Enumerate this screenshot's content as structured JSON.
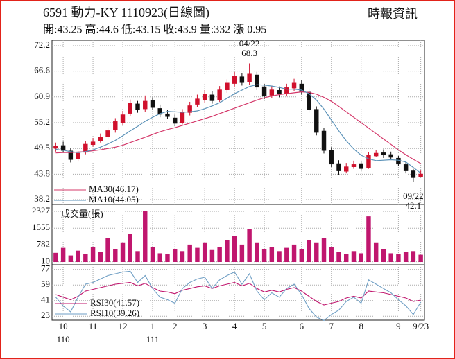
{
  "header": {
    "title": "6591  動力-KY 1110923(日線圖)",
    "source": "時報資訊",
    "quote": "開:43.25 高:44.6 低:43.15 收:43.9 量:332 漲 0.95"
  },
  "chart_data": [
    {
      "type": "candlestick",
      "categories": [
        null,
        "10",
        null,
        null,
        null,
        "11",
        null,
        null,
        null,
        "12",
        null,
        null,
        null,
        "1",
        null,
        null,
        "2",
        null,
        null,
        null,
        "3",
        null,
        null,
        null,
        "4",
        null,
        null,
        null,
        "5",
        null,
        null,
        null,
        null,
        "6",
        null,
        null,
        null,
        "7",
        null,
        null,
        null,
        "8",
        null,
        null,
        null,
        null,
        "9",
        null,
        null,
        "9/23"
      ],
      "years": [
        null,
        "110",
        null,
        null,
        null,
        null,
        null,
        null,
        null,
        null,
        null,
        null,
        null,
        "111",
        null,
        null,
        null,
        null,
        null,
        null,
        null,
        null,
        null,
        null,
        null,
        null,
        null,
        null,
        null,
        null,
        null,
        null,
        null,
        null,
        null,
        null,
        null,
        null,
        null,
        null,
        null,
        null,
        null,
        null,
        null,
        null,
        null,
        null,
        null,
        null
      ],
      "open": [
        49.5,
        50.2,
        49.0,
        47.2,
        48.6,
        50.3,
        51.2,
        52.0,
        53.6,
        55.2,
        57.2,
        59.4,
        58.2,
        60.1,
        58.4,
        57.2,
        56.3,
        55.2,
        57.4,
        59.2,
        60.2,
        61.4,
        60.2,
        62.4,
        63.8,
        65.4,
        64.2,
        65.8,
        63.2,
        61.2,
        62.4,
        61.6,
        62.8,
        63.8,
        62.0,
        58.2,
        53.4,
        49.2,
        46.2,
        44.4,
        45.4,
        46.2,
        45.2,
        47.8,
        48.6,
        48.2,
        47.4,
        46.0,
        44.6,
        43.25
      ],
      "high": [
        50.8,
        51.0,
        49.6,
        48.9,
        51.2,
        51.8,
        52.8,
        54.2,
        56.2,
        57.8,
        60.3,
        60.0,
        61.2,
        60.8,
        59.2,
        58.0,
        57.0,
        58.2,
        59.8,
        61.4,
        62.4,
        62.2,
        63.3,
        64.8,
        66.4,
        66.2,
        68.3,
        66.4,
        63.8,
        63.4,
        63.2,
        63.8,
        64.9,
        64.6,
        62.8,
        58.8,
        54.0,
        49.8,
        46.9,
        46.3,
        46.8,
        46.8,
        48.7,
        49.2,
        49.3,
        48.8,
        47.9,
        46.5,
        45.0,
        44.6
      ],
      "low": [
        48.8,
        48.6,
        46.4,
        46.6,
        48.2,
        49.9,
        50.8,
        51.5,
        53.0,
        54.6,
        56.6,
        57.4,
        57.6,
        58.0,
        56.4,
        56.0,
        54.4,
        54.8,
        56.8,
        58.6,
        59.6,
        59.4,
        59.8,
        61.8,
        63.2,
        63.4,
        63.6,
        62.4,
        60.4,
        60.6,
        60.8,
        61.0,
        62.2,
        61.4,
        57.4,
        52.4,
        48.4,
        45.4,
        43.6,
        44.0,
        45.0,
        44.5,
        45.0,
        47.6,
        47.4,
        47.0,
        45.6,
        44.0,
        42.1,
        43.15
      ],
      "close": [
        50.0,
        49.0,
        47.0,
        48.5,
        50.5,
        51.0,
        52.0,
        53.5,
        55.5,
        57.0,
        59.5,
        58.0,
        60.0,
        58.5,
        57.0,
        56.5,
        55.0,
        57.5,
        59.0,
        60.5,
        61.5,
        60.0,
        62.5,
        64.0,
        65.5,
        64.0,
        66.0,
        63.0,
        61.0,
        62.5,
        61.5,
        63.0,
        64.0,
        62.0,
        58.0,
        53.0,
        49.0,
        46.0,
        44.5,
        45.5,
        46.0,
        45.0,
        48.0,
        48.5,
        48.0,
        47.5,
        46.0,
        44.5,
        43.0,
        43.9
      ],
      "up_color": "#d0102c",
      "down_color": "#111111",
      "series": [
        {
          "name": "MA30(46.17)",
          "color": "#d4386a",
          "values": [
            48.5,
            48.6,
            48.6,
            48.7,
            48.8,
            49.0,
            49.2,
            49.5,
            49.8,
            50.2,
            50.8,
            51.4,
            52.0,
            52.6,
            53.2,
            53.7,
            54.1,
            54.6,
            55.1,
            55.6,
            56.1,
            56.6,
            57.2,
            57.8,
            58.4,
            59.0,
            59.6,
            60.2,
            60.7,
            61.1,
            61.4,
            61.6,
            61.8,
            62.0,
            61.9,
            61.5,
            60.8,
            59.9,
            58.8,
            57.6,
            56.4,
            55.2,
            54.0,
            52.8,
            51.6,
            50.4,
            49.2,
            48.1,
            47.1,
            46.17
          ]
        },
        {
          "name": "MA10(44.05)",
          "color": "#5b92b8",
          "values": [
            49.3,
            49.1,
            48.8,
            48.6,
            48.8,
            49.2,
            49.8,
            50.5,
            51.3,
            52.3,
            53.4,
            54.4,
            55.5,
            56.4,
            57.2,
            57.7,
            57.6,
            57.5,
            57.6,
            57.8,
            58.3,
            58.9,
            59.6,
            60.6,
            61.6,
            62.4,
            63.2,
            63.6,
            63.5,
            63.3,
            63.0,
            62.6,
            62.6,
            62.4,
            61.6,
            60.2,
            58.2,
            55.8,
            53.4,
            51.2,
            49.4,
            48.0,
            47.2,
            46.8,
            46.9,
            47.0,
            46.9,
            46.5,
            45.3,
            44.05
          ]
        }
      ],
      "annotations": [
        {
          "label": "04/22",
          "value": 68.3
        },
        {
          "label": "09/22",
          "value": 42.1
        }
      ],
      "ylim": [
        38.2,
        72.2
      ],
      "yticks": [
        72.2,
        66.6,
        60.9,
        55.2,
        49.5,
        43.8,
        38.2
      ],
      "grid": true
    },
    {
      "type": "bar",
      "title": "成交量(張)",
      "color": "#c0166e",
      "values": [
        420,
        650,
        300,
        520,
        380,
        700,
        450,
        1100,
        600,
        900,
        1300,
        500,
        2327,
        700,
        400,
        350,
        600,
        500,
        800,
        650,
        900,
        550,
        700,
        1000,
        1200,
        800,
        1500,
        900,
        600,
        700,
        500,
        650,
        800,
        600,
        1000,
        900,
        1100,
        700,
        450,
        380,
        500,
        400,
        2100,
        900,
        600,
        400,
        350,
        450,
        500,
        332
      ],
      "ylim": [
        0,
        2327
      ],
      "yticks": [
        2327,
        1555,
        782,
        10
      ],
      "grid": true
    },
    {
      "type": "line",
      "series": [
        {
          "name": "RSI30(41.57)",
          "color": "#c0166e",
          "values": [
            48,
            45,
            42,
            46,
            52,
            54,
            56,
            58,
            60,
            61,
            62,
            58,
            61,
            56,
            52,
            51,
            49,
            53,
            55,
            57,
            58,
            55,
            58,
            60,
            62,
            58,
            61,
            55,
            51,
            53,
            51,
            54,
            56,
            52,
            46,
            40,
            36,
            38,
            40,
            44,
            46,
            44,
            52,
            51,
            50,
            48,
            46,
            44,
            40,
            41.57
          ]
        },
        {
          "name": "RSI10(39.26)",
          "color": "#6e9ec4",
          "values": [
            45,
            35,
            28,
            45,
            60,
            62,
            66,
            70,
            72,
            74,
            75,
            62,
            70,
            55,
            45,
            42,
            38,
            55,
            62,
            66,
            68,
            55,
            65,
            70,
            74,
            60,
            72,
            52,
            42,
            50,
            45,
            55,
            60,
            48,
            32,
            22,
            18,
            25,
            30,
            40,
            45,
            38,
            65,
            60,
            55,
            50,
            42,
            35,
            25,
            39.26
          ]
        }
      ],
      "ylim": [
        20,
        80
      ],
      "yticks": [
        77,
        59,
        41,
        23
      ],
      "grid": true
    }
  ]
}
